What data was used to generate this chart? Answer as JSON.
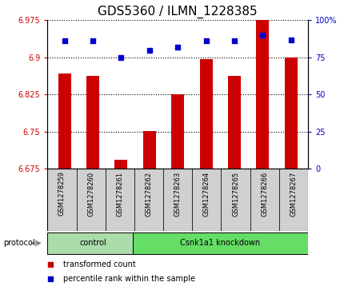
{
  "title": "GDS5360 / ILMN_1228385",
  "samples": [
    "GSM1278259",
    "GSM1278260",
    "GSM1278261",
    "GSM1278262",
    "GSM1278263",
    "GSM1278264",
    "GSM1278265",
    "GSM1278266",
    "GSM1278267"
  ],
  "bar_values": [
    6.868,
    6.863,
    6.693,
    6.751,
    6.825,
    6.897,
    6.863,
    6.975,
    6.9
  ],
  "dot_values": [
    86,
    86,
    75,
    80,
    82,
    86,
    86,
    90,
    87
  ],
  "ylim_left": [
    6.675,
    6.975
  ],
  "ylim_right": [
    0,
    100
  ],
  "yticks_left": [
    6.675,
    6.75,
    6.825,
    6.9,
    6.975
  ],
  "yticks_right": [
    0,
    25,
    50,
    75,
    100
  ],
  "bar_color": "#cc0000",
  "dot_color": "#0000cc",
  "bar_bottom": 6.675,
  "bar_width": 0.45,
  "groups": [
    {
      "label": "control",
      "start": 0,
      "end": 3,
      "color": "#aaddaa"
    },
    {
      "label": "Csnk1a1 knockdown",
      "start": 3,
      "end": 9,
      "color": "#66dd66"
    }
  ],
  "protocol_label": "protocol",
  "legend_bar_label": "transformed count",
  "legend_dot_label": "percentile rank within the sample",
  "bg_color": "#ffffff",
  "sample_box_color": "#d0d0d0",
  "title_fontsize": 11,
  "tick_fontsize": 7,
  "sample_fontsize": 6,
  "legend_fontsize": 7,
  "group_fontsize": 7,
  "protocol_fontsize": 7
}
